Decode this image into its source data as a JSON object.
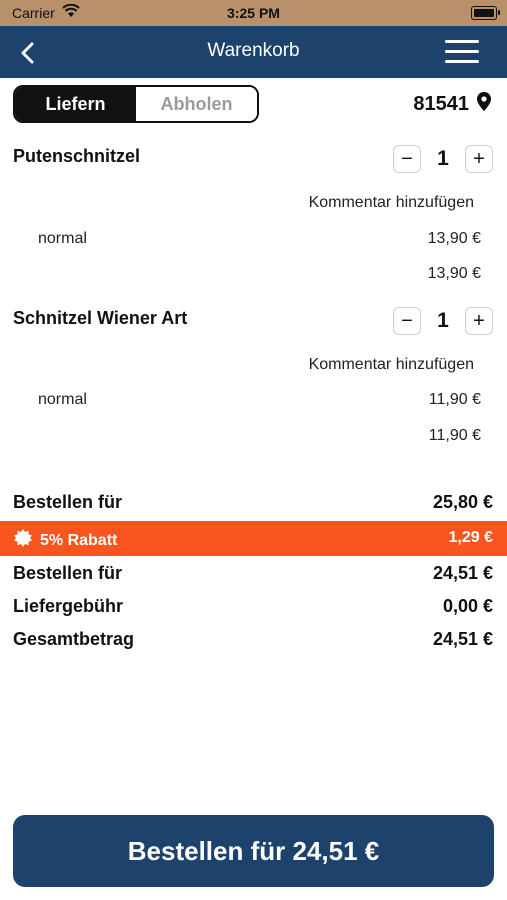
{
  "status_bar": {
    "carrier": "Carrier",
    "time": "3:25 PM"
  },
  "nav": {
    "title": "Warenkorb"
  },
  "delivery_toggle": {
    "active": "Liefern",
    "inactive": "Abholen"
  },
  "zip": "81541",
  "items": [
    {
      "name": "Putenschnitzel",
      "qty": "1",
      "comment_label": "Kommentar hinzufügen",
      "variant": "normal",
      "variant_price": "13,90 €",
      "total": "13,90 €"
    },
    {
      "name": "Schnitzel Wiener Art",
      "qty": "1",
      "comment_label": "Kommentar hinzufügen",
      "variant": "normal",
      "variant_price": "11,90 €",
      "total": "11,90 €"
    }
  ],
  "summary": {
    "subtotal_label": "Bestellen für",
    "subtotal_value": "25,80 €",
    "discount_label": "5% Rabatt",
    "discount_value": "1,29 €",
    "after_discount_label": "Bestellen für",
    "after_discount_value": "24,51 €",
    "delivery_fee_label": "Liefergebühr",
    "delivery_fee_value": "0,00 €",
    "total_label": "Gesamtbetrag",
    "total_value": "24,51 €"
  },
  "order_button": "Bestellen für 24,51 €",
  "colors": {
    "nav": "#1d426b",
    "discount": "#f9561f",
    "status_bar": "#b8906a"
  }
}
